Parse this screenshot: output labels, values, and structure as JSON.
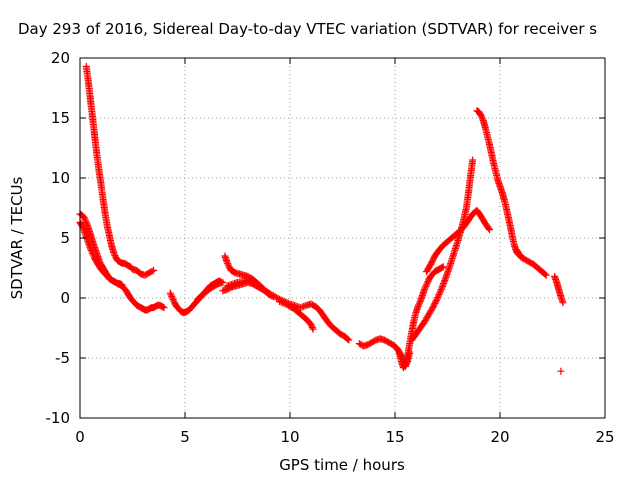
{
  "chart_data": {
    "type": "scatter",
    "title": "Day 293 of 2016, Sidereal Day-to-day VTEC variation (SDTVAR) for receiver s",
    "xlabel": "GPS time / hours",
    "ylabel": "SDTVAR / TECUs",
    "xlim": [
      0,
      25
    ],
    "ylim": [
      -10,
      20
    ],
    "xticks": [
      0,
      5,
      10,
      15,
      20,
      25
    ],
    "yticks": [
      -10,
      -5,
      0,
      5,
      10,
      15,
      20
    ],
    "xtick_labels": [
      "0",
      "5",
      "10",
      "15",
      "20",
      "25"
    ],
    "ytick_labels": [
      "-10",
      "-5",
      "0",
      "5",
      "10",
      "15",
      "20"
    ],
    "grid": true,
    "legend": "none",
    "marker": "plus",
    "color": "#ff0000",
    "series": [
      {
        "x": [
          0.3,
          0.4,
          0.5,
          0.6,
          0.7,
          0.8,
          0.9,
          1.0,
          1.1,
          1.2,
          1.3,
          1.4,
          1.5,
          1.6,
          1.7,
          1.8,
          1.9,
          2.0,
          2.1,
          2.2,
          2.3,
          2.4,
          2.5,
          2.7,
          2.9,
          3.1,
          3.3,
          3.5
        ],
        "y": [
          19.3,
          18.0,
          16.5,
          15.0,
          13.5,
          12.0,
          10.7,
          9.5,
          8.2,
          7.0,
          6.0,
          5.2,
          4.4,
          3.8,
          3.4,
          3.1,
          3.0,
          2.9,
          2.9,
          2.8,
          2.7,
          2.6,
          2.4,
          2.3,
          2.0,
          1.9,
          2.1,
          2.3
        ]
      },
      {
        "x": [
          0.0,
          0.1,
          0.2,
          0.3,
          0.4,
          0.5,
          0.6,
          0.7,
          0.8,
          0.9,
          1.0,
          1.1,
          1.2,
          1.3,
          1.4,
          1.5,
          1.6,
          1.7,
          1.8,
          1.9,
          2.0,
          2.1,
          2.2,
          2.3,
          2.4,
          2.5,
          2.6,
          2.7,
          2.8,
          2.9,
          3.0,
          3.1,
          3.2,
          3.3,
          3.4,
          3.5,
          3.6,
          3.7,
          3.8,
          3.9,
          4.0
        ],
        "y": [
          7.0,
          6.9,
          6.7,
          6.3,
          5.8,
          5.3,
          4.7,
          4.2,
          3.7,
          3.2,
          2.8,
          2.5,
          2.2,
          1.9,
          1.7,
          1.5,
          1.4,
          1.3,
          1.2,
          1.1,
          1.0,
          0.8,
          0.6,
          0.3,
          0.0,
          -0.2,
          -0.4,
          -0.6,
          -0.7,
          -0.8,
          -0.9,
          -1.0,
          -1.0,
          -0.9,
          -0.8,
          -0.8,
          -0.7,
          -0.6,
          -0.6,
          -0.7,
          -0.8
        ]
      },
      {
        "x": [
          0.0,
          0.1,
          0.2,
          0.3,
          0.4,
          0.5,
          0.6,
          0.7,
          0.8,
          0.9,
          1.0,
          1.1,
          1.2,
          1.3,
          1.4,
          1.5,
          1.6,
          1.7,
          1.8,
          1.9,
          2.0
        ],
        "y": [
          6.3,
          6.0,
          5.6,
          5.1,
          4.6,
          4.1,
          3.7,
          3.3,
          3.0,
          2.7,
          2.4,
          2.2,
          2.0,
          1.8,
          1.6,
          1.5,
          1.4,
          1.3,
          1.2,
          1.2,
          1.1
        ]
      },
      {
        "x": [
          4.3,
          4.4,
          4.5,
          4.6,
          4.7,
          4.8,
          4.9,
          5.0,
          5.1,
          5.2,
          5.3,
          5.4,
          5.5,
          5.6,
          5.7,
          5.8,
          5.9,
          6.0,
          6.1,
          6.2,
          6.3,
          6.4,
          6.5,
          6.6,
          6.7
        ],
        "y": [
          0.4,
          0.0,
          -0.4,
          -0.7,
          -0.9,
          -1.1,
          -1.2,
          -1.2,
          -1.1,
          -1.0,
          -0.8,
          -0.6,
          -0.4,
          -0.2,
          0.0,
          0.2,
          0.4,
          0.6,
          0.8,
          1.0,
          1.1,
          1.2,
          1.3,
          1.4,
          1.4
        ]
      },
      {
        "x": [
          5.6,
          5.8,
          6.0,
          6.2,
          6.4,
          6.6,
          6.8
        ],
        "y": [
          -0.1,
          0.2,
          0.5,
          0.8,
          1.0,
          1.2,
          1.3
        ]
      },
      {
        "x": [
          6.9,
          7.0,
          7.1,
          7.2,
          7.3,
          7.4,
          7.6,
          7.8,
          8.0,
          8.2,
          8.4,
          8.6,
          8.8,
          9.0,
          9.2
        ],
        "y": [
          3.5,
          3.0,
          2.6,
          2.3,
          2.2,
          2.1,
          2.0,
          1.9,
          1.8,
          1.6,
          1.3,
          1.0,
          0.6,
          0.3,
          0.1
        ]
      },
      {
        "x": [
          6.8,
          7.0,
          7.2,
          7.4,
          7.6,
          7.8,
          8.0,
          8.2,
          8.4,
          8.6,
          8.8,
          9.0
        ],
        "y": [
          0.6,
          0.7,
          0.9,
          1.0,
          1.1,
          1.2,
          1.3,
          1.2,
          1.0,
          0.8,
          0.6,
          0.4
        ]
      },
      {
        "x": [
          7.0,
          7.5,
          8.0,
          8.5,
          9.0,
          9.5,
          10.0,
          10.5,
          10.8,
          11.0,
          11.2,
          11.4,
          11.6,
          11.8,
          12.0,
          12.2,
          12.4,
          12.6,
          12.8
        ],
        "y": [
          1.0,
          1.3,
          1.5,
          1.0,
          0.4,
          -0.1,
          -0.5,
          -0.8,
          -0.6,
          -0.5,
          -0.7,
          -1.0,
          -1.5,
          -2.0,
          -2.4,
          -2.7,
          -3.0,
          -3.2,
          -3.5
        ]
      },
      {
        "x": [
          9.5,
          9.8,
          10.0,
          10.2,
          10.4,
          10.6,
          10.8,
          11.0,
          11.1
        ],
        "y": [
          -0.3,
          -0.5,
          -0.7,
          -0.9,
          -1.2,
          -1.5,
          -1.8,
          -2.2,
          -2.6
        ]
      },
      {
        "x": [
          13.3,
          13.5,
          13.7,
          13.9,
          14.1,
          14.3,
          14.5,
          14.7,
          14.9,
          15.1,
          15.2,
          15.3,
          15.4,
          15.5,
          15.6,
          15.7
        ],
        "y": [
          -3.8,
          -4.0,
          -3.9,
          -3.7,
          -3.5,
          -3.4,
          -3.5,
          -3.7,
          -3.9,
          -4.2,
          -4.5,
          -4.8,
          -5.2,
          -5.7,
          -5.3,
          -4.5
        ]
      },
      {
        "x": [
          15.2,
          15.3,
          15.4,
          15.5,
          15.6,
          15.7,
          15.8,
          15.9,
          16.0,
          16.1,
          16.2,
          16.3,
          16.4,
          16.5,
          16.6,
          16.7,
          16.8,
          16.9,
          17.0,
          17.1,
          17.2,
          17.3
        ],
        "y": [
          -4.6,
          -5.3,
          -5.8,
          -5.5,
          -4.8,
          -3.8,
          -2.8,
          -1.9,
          -1.2,
          -0.7,
          -0.3,
          0.2,
          0.7,
          1.1,
          1.5,
          1.8,
          2.0,
          2.2,
          2.3,
          2.4,
          2.5,
          2.6
        ]
      },
      {
        "x": [
          15.8,
          16.0,
          16.2,
          16.4,
          16.6,
          16.8,
          17.0,
          17.2,
          17.4,
          17.6,
          17.8,
          18.0,
          18.2,
          18.4,
          18.5,
          18.6,
          18.7
        ],
        "y": [
          -3.5,
          -3.0,
          -2.5,
          -2.0,
          -1.4,
          -0.8,
          -0.1,
          0.7,
          1.6,
          2.6,
          3.7,
          4.8,
          6.0,
          7.5,
          8.8,
          10.2,
          11.5
        ]
      },
      {
        "x": [
          16.5,
          16.7,
          16.9,
          17.1,
          17.3,
          17.5,
          17.7,
          17.9,
          18.1,
          18.3,
          18.5,
          18.7,
          18.9,
          19.1,
          19.3,
          19.5
        ],
        "y": [
          2.2,
          2.8,
          3.5,
          4.0,
          4.4,
          4.7,
          5.0,
          5.3,
          5.6,
          6.0,
          6.5,
          7.0,
          7.3,
          6.8,
          6.2,
          5.7
        ]
      },
      {
        "x": [
          18.9,
          19.0,
          19.1,
          19.2,
          19.3,
          19.4,
          19.5,
          19.6,
          19.7,
          19.8,
          19.9,
          20.0,
          20.1,
          20.2,
          20.3,
          20.4,
          20.5,
          20.6,
          20.7,
          20.8,
          20.9,
          21.0
        ],
        "y": [
          15.6,
          15.5,
          15.2,
          14.8,
          14.2,
          13.5,
          12.8,
          12.0,
          11.2,
          10.5,
          9.8,
          9.3,
          8.8,
          8.2,
          7.5,
          6.7,
          5.9,
          5.0,
          4.3,
          3.8,
          3.6,
          3.5
        ]
      },
      {
        "x": [
          20.8,
          21.0,
          21.2,
          21.4,
          21.6,
          21.8,
          22.0,
          22.2
        ],
        "y": [
          4.0,
          3.4,
          3.2,
          3.0,
          2.8,
          2.5,
          2.2,
          1.9
        ]
      },
      {
        "x": [
          22.6,
          22.7,
          22.8,
          22.9,
          23.0
        ],
        "y": [
          1.8,
          1.3,
          0.7,
          0.1,
          -0.4
        ]
      },
      {
        "x": [
          22.9
        ],
        "y": [
          -6.1
        ]
      }
    ]
  }
}
